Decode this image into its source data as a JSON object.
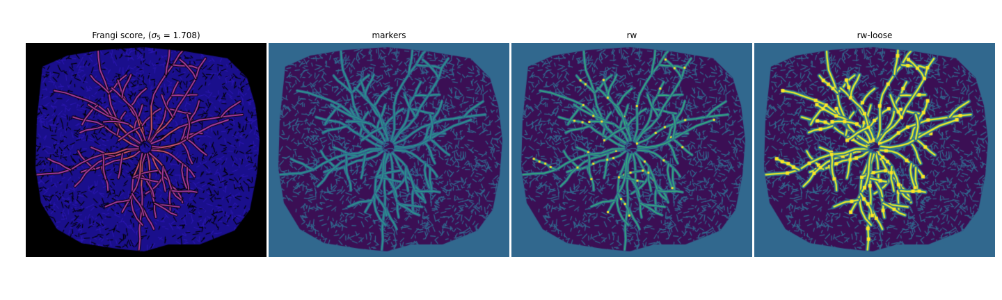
{
  "figure": {
    "panels": [
      {
        "id": "frangi",
        "title_prefix": "Frangi score, (",
        "title_sigma": "σ",
        "title_sub": "5",
        "title_suffix": " = 1.708)",
        "colors": {
          "background": "#000000",
          "tissue": "#1a0f8c",
          "tissue_alt": "#2b17b0",
          "vessel": "#b23ea8",
          "vessel_hi": "#ff7a3c"
        }
      },
      {
        "id": "markers",
        "title": "markers",
        "colors": {
          "background": "#31688e",
          "tissue": "#3b0f54",
          "line": "#31688e",
          "vessel": "#2aa38c"
        }
      },
      {
        "id": "rw",
        "title": "rw",
        "colors": {
          "background": "#31688e",
          "tissue": "#3b0f54",
          "line": "#31688e",
          "vessel": "#35b779",
          "vessel_hi": "#fde725"
        }
      },
      {
        "id": "rw-loose",
        "title": "rw-loose",
        "colors": {
          "background": "#31688e",
          "tissue": "#3b0f54",
          "line": "#31688e",
          "vessel": "#35b779",
          "vessel_hi": "#fde725"
        }
      }
    ]
  }
}
